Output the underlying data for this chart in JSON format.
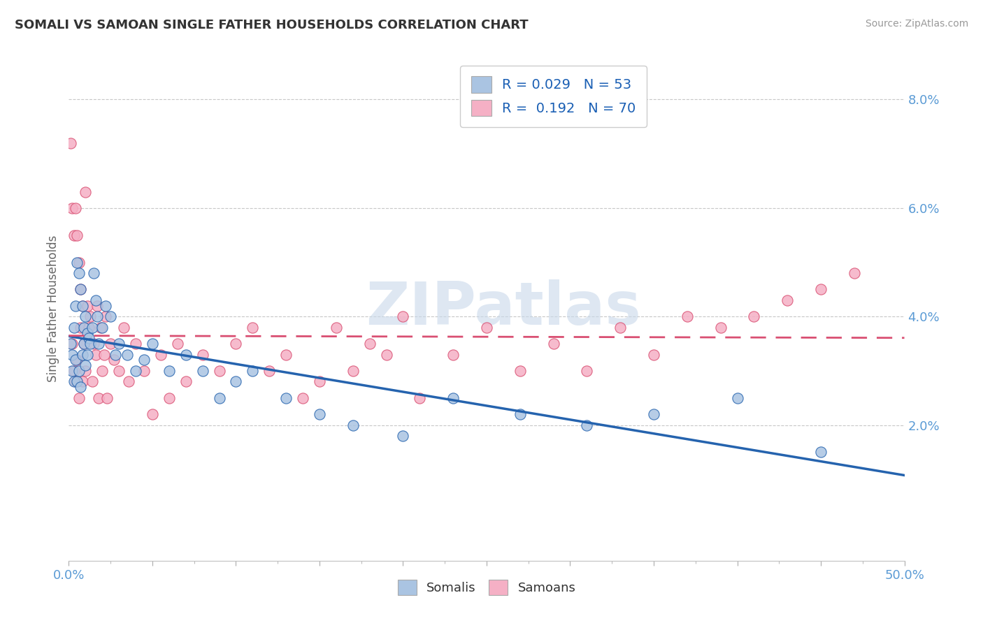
{
  "title": "SOMALI VS SAMOAN SINGLE FATHER HOUSEHOLDS CORRELATION CHART",
  "source": "Source: ZipAtlas.com",
  "ylabel": "Single Father Households",
  "xlim": [
    0.0,
    0.5
  ],
  "ylim": [
    -0.005,
    0.088
  ],
  "somali_R": "0.029",
  "somali_N": "53",
  "samoan_R": "0.192",
  "samoan_N": "70",
  "somali_color": "#aac4e2",
  "samoan_color": "#f5b0c5",
  "somali_line_color": "#2563ae",
  "samoan_line_color": "#d94f72",
  "legend_R_color": "#1a5fb4",
  "watermark_color": "#c8d8ea",
  "right_ytick_labels": [
    "2.0%",
    "4.0%",
    "6.0%",
    "8.0%"
  ],
  "right_ytick_positions": [
    0.02,
    0.04,
    0.06,
    0.08
  ],
  "somali_x": [
    0.001,
    0.002,
    0.002,
    0.003,
    0.003,
    0.004,
    0.004,
    0.005,
    0.005,
    0.006,
    0.006,
    0.007,
    0.007,
    0.008,
    0.008,
    0.009,
    0.009,
    0.01,
    0.01,
    0.011,
    0.011,
    0.012,
    0.013,
    0.014,
    0.015,
    0.016,
    0.017,
    0.018,
    0.02,
    0.022,
    0.025,
    0.028,
    0.03,
    0.035,
    0.04,
    0.045,
    0.05,
    0.06,
    0.07,
    0.08,
    0.09,
    0.1,
    0.11,
    0.13,
    0.15,
    0.17,
    0.2,
    0.23,
    0.27,
    0.31,
    0.35,
    0.4,
    0.45
  ],
  "somali_y": [
    0.035,
    0.033,
    0.03,
    0.038,
    0.028,
    0.042,
    0.032,
    0.05,
    0.028,
    0.048,
    0.03,
    0.045,
    0.027,
    0.042,
    0.033,
    0.038,
    0.035,
    0.04,
    0.031,
    0.037,
    0.033,
    0.036,
    0.035,
    0.038,
    0.048,
    0.043,
    0.04,
    0.035,
    0.038,
    0.042,
    0.04,
    0.033,
    0.035,
    0.033,
    0.03,
    0.032,
    0.035,
    0.03,
    0.033,
    0.03,
    0.025,
    0.028,
    0.03,
    0.025,
    0.022,
    0.02,
    0.018,
    0.025,
    0.022,
    0.02,
    0.022,
    0.025,
    0.015
  ],
  "samoan_x": [
    0.001,
    0.002,
    0.002,
    0.003,
    0.003,
    0.004,
    0.004,
    0.005,
    0.005,
    0.006,
    0.006,
    0.007,
    0.007,
    0.008,
    0.008,
    0.009,
    0.01,
    0.01,
    0.011,
    0.012,
    0.013,
    0.014,
    0.015,
    0.016,
    0.017,
    0.018,
    0.019,
    0.02,
    0.021,
    0.022,
    0.023,
    0.025,
    0.027,
    0.03,
    0.033,
    0.036,
    0.04,
    0.045,
    0.05,
    0.055,
    0.06,
    0.065,
    0.07,
    0.08,
    0.09,
    0.1,
    0.11,
    0.12,
    0.13,
    0.14,
    0.15,
    0.16,
    0.17,
    0.18,
    0.19,
    0.2,
    0.21,
    0.23,
    0.25,
    0.27,
    0.29,
    0.31,
    0.33,
    0.35,
    0.37,
    0.39,
    0.41,
    0.43,
    0.45,
    0.47
  ],
  "samoan_y": [
    0.072,
    0.06,
    0.035,
    0.055,
    0.03,
    0.06,
    0.028,
    0.055,
    0.032,
    0.05,
    0.025,
    0.045,
    0.038,
    0.042,
    0.028,
    0.035,
    0.063,
    0.03,
    0.042,
    0.038,
    0.04,
    0.028,
    0.035,
    0.033,
    0.042,
    0.025,
    0.038,
    0.03,
    0.033,
    0.04,
    0.025,
    0.035,
    0.032,
    0.03,
    0.038,
    0.028,
    0.035,
    0.03,
    0.022,
    0.033,
    0.025,
    0.035,
    0.028,
    0.033,
    0.03,
    0.035,
    0.038,
    0.03,
    0.033,
    0.025,
    0.028,
    0.038,
    0.03,
    0.035,
    0.033,
    0.04,
    0.025,
    0.033,
    0.038,
    0.03,
    0.035,
    0.03,
    0.038,
    0.033,
    0.04,
    0.038,
    0.04,
    0.043,
    0.045,
    0.048
  ]
}
